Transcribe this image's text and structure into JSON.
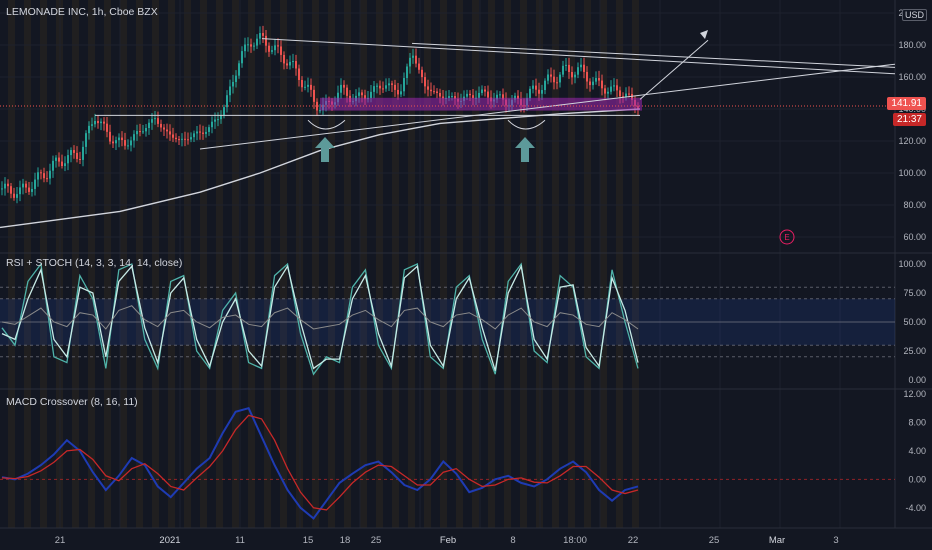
{
  "header": {
    "symbol_title": "LEMONADE INC, 1h, Cboe BZX",
    "currency": "USD"
  },
  "price_label": "141.91",
  "countdown_label": "21:37",
  "earnings_marker": "E",
  "colors": {
    "background": "#131722",
    "grid": "#1e222d",
    "up": "#26a69a",
    "down": "#ef5350",
    "trendline": "#d1d4dc",
    "support_zone": "#9c27b0",
    "arrow": "#5d9a9a",
    "rsi": "#8a8a8a",
    "stoch_k": "#4fb3a9",
    "stoch_d": "#c7eae6",
    "macd": "#1e3bb3",
    "signal": "#c62828",
    "price_badge": "#ef5350",
    "session_band": "#3a2f1e"
  },
  "chart_data": [
    {
      "type": "candlestick",
      "title": "LEMONADE INC, 1h, Cboe BZX",
      "y_ticks": [
        "60.00",
        "80.00",
        "100.00",
        "120.00",
        "140.00",
        "160.00",
        "180.00",
        "200.00"
      ],
      "y_range": [
        55,
        205
      ],
      "x_ticks": [
        "21",
        "2021",
        "11",
        "15",
        "18",
        "25",
        "Feb",
        "8",
        "18:00",
        "22",
        "25",
        "Mar",
        "3"
      ],
      "series": [
        {
          "name": "price",
          "points": [
            [
              0,
              90
            ],
            [
              20,
              88
            ],
            [
              40,
              97
            ],
            [
              60,
              108
            ],
            [
              80,
              112
            ],
            [
              95,
              136
            ],
            [
              110,
              122
            ],
            [
              125,
              118
            ],
            [
              140,
              126
            ],
            [
              155,
              134
            ],
            [
              165,
              126
            ],
            [
              180,
              120
            ],
            [
              195,
              124
            ],
            [
              210,
              128
            ],
            [
              225,
              142
            ],
            [
              240,
              172
            ],
            [
              250,
              182
            ],
            [
              262,
              184
            ],
            [
              272,
              178
            ],
            [
              285,
              172
            ],
            [
              300,
              160
            ],
            [
              315,
              144
            ],
            [
              325,
              140
            ],
            [
              340,
              152
            ],
            [
              355,
              146
            ],
            [
              370,
              150
            ],
            [
              385,
              156
            ],
            [
              400,
              150
            ],
            [
              412,
              176
            ],
            [
              425,
              154
            ],
            [
              440,
              148
            ],
            [
              460,
              146
            ],
            [
              480,
              150
            ],
            [
              500,
              146
            ],
            [
              520,
              144
            ],
            [
              535,
              152
            ],
            [
              550,
              158
            ],
            [
              565,
              164
            ],
            [
              580,
              164
            ],
            [
              595,
              156
            ],
            [
              610,
              152
            ],
            [
              625,
              150
            ],
            [
              632,
              144
            ],
            [
              640,
              142
            ]
          ]
        },
        {
          "name": "moving average",
          "points": [
            [
              0,
              66
            ],
            [
              120,
              76
            ],
            [
              200,
              88
            ],
            [
              260,
              100
            ],
            [
              320,
              114
            ],
            [
              380,
              124
            ],
            [
              440,
              131
            ],
            [
              500,
              134
            ],
            [
              560,
              137
            ],
            [
              640,
              140
            ]
          ]
        }
      ],
      "last_price": 141.91
    },
    {
      "type": "line",
      "title": "RSI + STOCH (14, 3, 3, 14, 14, close)",
      "y_ticks": [
        "0.00",
        "25.00",
        "50.00",
        "75.00",
        "100.00"
      ],
      "y_range": [
        0,
        100
      ],
      "levels": [
        30,
        50,
        70,
        80,
        20
      ],
      "series": [
        {
          "name": "stoch_k",
          "values": [
            45,
            30,
            85,
            100,
            20,
            15,
            90,
            70,
            10,
            95,
            100,
            35,
            10,
            85,
            90,
            25,
            10,
            60,
            75,
            15,
            10,
            90,
            100,
            40,
            5,
            20,
            15,
            80,
            95,
            30,
            10,
            95,
            100,
            20,
            10,
            80,
            90,
            35,
            5,
            85,
            100,
            25,
            15,
            90,
            80,
            20,
            10,
            95,
            50,
            10
          ]
        },
        {
          "name": "stoch_d",
          "values": [
            40,
            35,
            70,
            95,
            35,
            20,
            80,
            75,
            20,
            85,
            98,
            45,
            15,
            75,
            88,
            35,
            12,
            50,
            70,
            25,
            12,
            80,
            98,
            50,
            10,
            18,
            18,
            70,
            90,
            40,
            12,
            88,
            98,
            30,
            12,
            70,
            88,
            45,
            8,
            75,
            98,
            35,
            18,
            80,
            82,
            28,
            12,
            88,
            60,
            15
          ]
        },
        {
          "name": "rsi",
          "values": [
            50,
            48,
            55,
            62,
            50,
            46,
            58,
            56,
            44,
            60,
            64,
            52,
            46,
            58,
            60,
            50,
            45,
            54,
            56,
            48,
            46,
            58,
            62,
            52,
            44,
            46,
            48,
            56,
            60,
            52,
            46,
            60,
            62,
            50,
            46,
            56,
            58,
            52,
            44,
            56,
            62,
            50,
            46,
            58,
            56,
            48,
            46,
            58,
            52,
            44
          ]
        }
      ]
    },
    {
      "type": "line",
      "title": "MACD Crossover (8, 16, 11)",
      "y_ticks": [
        "-4.00",
        "0.00",
        "4.00",
        "8.00",
        "12.00"
      ],
      "y_range": [
        -6,
        12
      ],
      "series": [
        {
          "name": "macd",
          "values": [
            0.3,
            0.0,
            0.8,
            2.0,
            3.5,
            5.5,
            4.0,
            1.0,
            -1.5,
            0.5,
            3.0,
            2.0,
            -1.0,
            -2.5,
            -0.5,
            1.5,
            3.0,
            6.5,
            9.5,
            10.0,
            6.0,
            2.0,
            -1.5,
            -4.0,
            -5.5,
            -3.0,
            -0.5,
            0.8,
            2.0,
            2.5,
            1.0,
            -0.8,
            -1.5,
            0.0,
            2.5,
            0.8,
            -1.8,
            -1.2,
            0.0,
            0.5,
            -0.5,
            -1.0,
            0.0,
            1.5,
            2.5,
            1.0,
            -1.5,
            -3.0,
            -1.5,
            -1.0
          ]
        },
        {
          "name": "signal",
          "values": [
            0.2,
            0.1,
            0.4,
            1.2,
            2.4,
            4.0,
            4.2,
            2.8,
            0.5,
            -0.2,
            1.5,
            2.2,
            0.8,
            -1.0,
            -1.5,
            0.2,
            1.8,
            4.0,
            7.0,
            9.0,
            8.5,
            5.5,
            1.5,
            -1.8,
            -4.0,
            -4.3,
            -2.5,
            -0.5,
            1.0,
            2.0,
            1.8,
            0.5,
            -0.8,
            -0.8,
            1.0,
            1.5,
            0.0,
            -1.0,
            -0.8,
            0.0,
            0.2,
            -0.4,
            -0.5,
            0.5,
            1.8,
            1.8,
            0.3,
            -1.5,
            -2.0,
            -1.5
          ]
        }
      ]
    }
  ]
}
